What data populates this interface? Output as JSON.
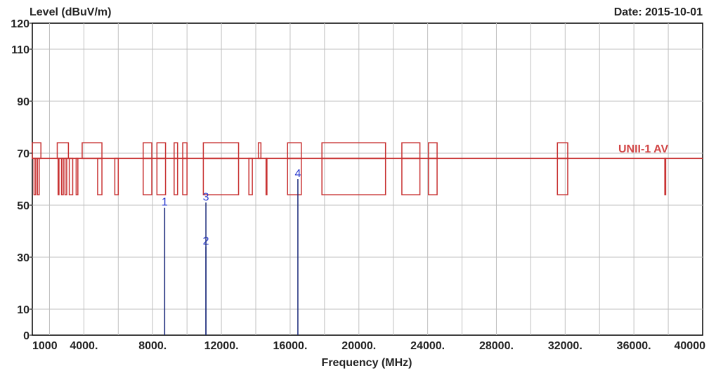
{
  "chart_data": {
    "type": "line",
    "title": "",
    "ylabel": "Level (dBuV/m)",
    "xlabel": "Frequency (MHz)",
    "date_label": "Date: 2015-10-01",
    "limit_label": "UNII-1 AV",
    "ylim": [
      0,
      120
    ],
    "xlim": [
      1000,
      40000
    ],
    "y_ticks": [
      0,
      10,
      30,
      50,
      70,
      90,
      110,
      120
    ],
    "x_ticks": [
      {
        "value": 1000,
        "label": "1000"
      },
      {
        "value": 4000,
        "label": "4000."
      },
      {
        "value": 8000,
        "label": "8000."
      },
      {
        "value": 12000,
        "label": "12000."
      },
      {
        "value": 16000,
        "label": "16000."
      },
      {
        "value": 20000,
        "label": "20000."
      },
      {
        "value": 24000,
        "label": "24000."
      },
      {
        "value": 28000,
        "label": "28000."
      },
      {
        "value": 32000,
        "label": "32000."
      },
      {
        "value": 36000,
        "label": "36000."
      },
      {
        "value": 40000,
        "label": "40000"
      }
    ],
    "grid": true,
    "limit_line": {
      "name": "UNII-1 AV",
      "baseline": 68,
      "upper": 74,
      "lower": 54,
      "upper_bands": [
        [
          1000,
          1500
        ],
        [
          2450,
          3100
        ],
        [
          3900,
          5050
        ],
        [
          7450,
          7950
        ],
        [
          8250,
          8750
        ],
        [
          9250,
          9450
        ],
        [
          9750,
          10000
        ],
        [
          10950,
          13000
        ],
        [
          14150,
          14300
        ],
        [
          15850,
          16650
        ],
        [
          17850,
          21550
        ],
        [
          22500,
          23550
        ],
        [
          24050,
          24550
        ],
        [
          31550,
          32150
        ]
      ],
      "lower_bands": [
        [
          1100,
          1200
        ],
        [
          1300,
          1400
        ],
        [
          2500,
          2550
        ],
        [
          2700,
          2800
        ],
        [
          2900,
          3000
        ],
        [
          3150,
          3350
        ],
        [
          3550,
          3650
        ],
        [
          4800,
          5050
        ],
        [
          5800,
          6000
        ],
        [
          7450,
          7950
        ],
        [
          8250,
          8750
        ],
        [
          9250,
          9450
        ],
        [
          9750,
          10000
        ],
        [
          10950,
          13000
        ],
        [
          13600,
          13800
        ],
        [
          14600,
          14650
        ],
        [
          15850,
          16650
        ],
        [
          17850,
          21550
        ],
        [
          22500,
          23550
        ],
        [
          24050,
          24550
        ],
        [
          31550,
          32150
        ],
        [
          37800,
          37850
        ]
      ]
    },
    "markers": [
      {
        "label": "1",
        "x": 8700,
        "y": 49
      },
      {
        "label": "2",
        "x": 11100,
        "y": 34
      },
      {
        "label": "3",
        "x": 11100,
        "y": 51
      },
      {
        "label": "4",
        "x": 16450,
        "y": 60
      }
    ],
    "colors": {
      "limit": "#c83232",
      "marker": "#2b3ccf",
      "grid": "#c0c0c0",
      "axis": "#000000"
    }
  }
}
